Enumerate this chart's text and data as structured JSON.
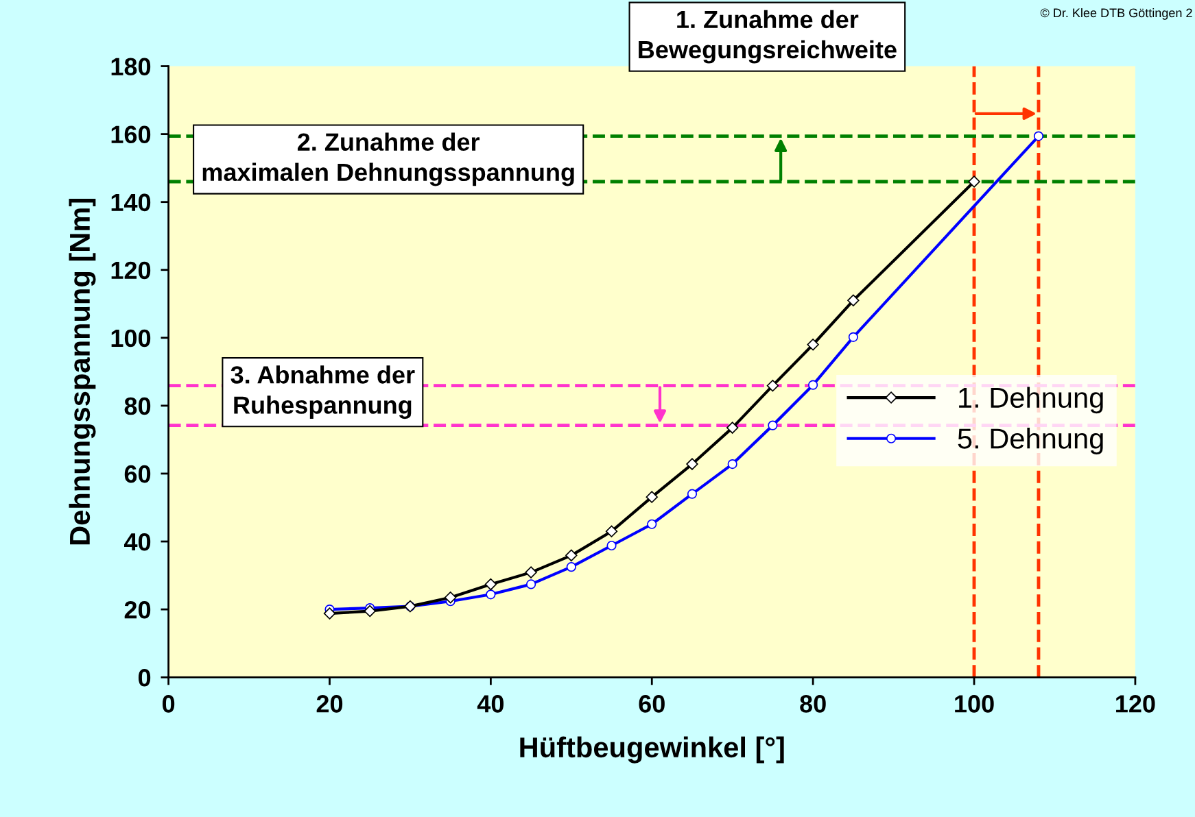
{
  "chart_data": {
    "type": "line",
    "xlabel": "Hüftbeugewinkel [°]",
    "ylabel": "Dehnungsspannung [Nm]",
    "xlim": [
      0,
      120
    ],
    "xticks": [
      0,
      20,
      40,
      60,
      80,
      100,
      120
    ],
    "ylim": [
      0,
      180
    ],
    "yticks": [
      0,
      20,
      40,
      60,
      80,
      100,
      120,
      140,
      160,
      180
    ],
    "grid": false,
    "legend": "right",
    "line_style": "solid",
    "series": [
      {
        "name": "1. Dehnung",
        "color": "#000000",
        "marker": "diamond",
        "x": [
          20,
          25,
          30,
          35,
          40,
          45,
          50,
          55,
          60,
          65,
          70,
          75,
          80,
          85,
          100
        ],
        "values": [
          18.8,
          19.5,
          20.9,
          23.5,
          27.4,
          30.9,
          35.9,
          43,
          53.1,
          62.8,
          73.5,
          85.9,
          98,
          111,
          146
        ]
      },
      {
        "name": "5. Dehnung",
        "color": "#0000ff",
        "marker": "circle",
        "x": [
          20,
          25,
          30,
          35,
          40,
          45,
          50,
          55,
          60,
          65,
          70,
          75,
          80,
          85,
          108
        ],
        "values": [
          20,
          20.4,
          20.9,
          22.4,
          24.4,
          27.4,
          32.5,
          38.8,
          45.1,
          54,
          62.8,
          74.2,
          86.1,
          100.2,
          159.4
        ]
      }
    ],
    "ref_lines": [
      {
        "axis": "x",
        "value": 100,
        "label": null,
        "color": "#ff3300",
        "line_style": "dashed"
      },
      {
        "axis": "x",
        "value": 108,
        "label": null,
        "color": "#ff3300",
        "line_style": "dashed"
      },
      {
        "axis": "y",
        "value": 146,
        "label": null,
        "color": "#008000",
        "line_style": "dashed"
      },
      {
        "axis": "y",
        "value": 159.4,
        "label": null,
        "color": "#008000",
        "line_style": "dashed"
      },
      {
        "axis": "y",
        "value": 85.9,
        "label": null,
        "color": "#ff33cc",
        "line_style": "dashed"
      },
      {
        "axis": "y",
        "value": 74.2,
        "label": null,
        "color": "#ff33cc",
        "line_style": "dashed"
      }
    ],
    "annotations": [
      "1. Zunahme der\nBewegungsreichweite",
      "2. Zunahme der\nmaximalen Dehnungsspannung",
      "3. Abnahme der\nRuhespannung",
      "© Dr. Klee DTB Göttingen 2"
    ]
  }
}
